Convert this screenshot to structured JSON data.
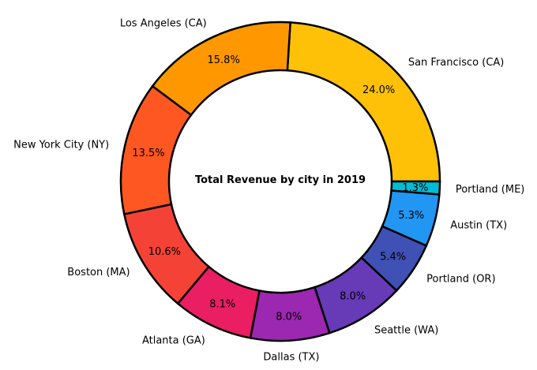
{
  "chart_data": {
    "type": "pie",
    "variant": "donut",
    "title": "",
    "center_text": "Total Revenue by city in 2019",
    "start_angle_deg": 0,
    "direction": "counterclockwise",
    "legend": "none",
    "slices": [
      {
        "label": "San Francisco (CA)",
        "value": 24.0,
        "pct_text": "24.0%",
        "color": "#FFC107"
      },
      {
        "label": "Los Angeles (CA)",
        "value": 15.8,
        "pct_text": "15.8%",
        "color": "#FF9800"
      },
      {
        "label": "New York City (NY)",
        "value": 13.5,
        "pct_text": "13.5%",
        "color": "#FF5722"
      },
      {
        "label": "Boston (MA)",
        "value": 10.6,
        "pct_text": "10.6%",
        "color": "#F44336"
      },
      {
        "label": "Atlanta (GA)",
        "value": 8.1,
        "pct_text": "8.1%",
        "color": "#E91E63"
      },
      {
        "label": "Dallas (TX)",
        "value": 8.0,
        "pct_text": "8.0%",
        "color": "#9C27B0"
      },
      {
        "label": "Seattle (WA)",
        "value": 8.0,
        "pct_text": "8.0%",
        "color": "#673AB7"
      },
      {
        "label": "Portland (OR)",
        "value": 5.4,
        "pct_text": "5.4%",
        "color": "#3F51B5"
      },
      {
        "label": "Austin (TX)",
        "value": 5.3,
        "pct_text": "5.3%",
        "color": "#2196F3"
      },
      {
        "label": "Portland (ME)",
        "value": 1.3,
        "pct_text": "1.3%",
        "color": "#00BCD4"
      }
    ]
  }
}
